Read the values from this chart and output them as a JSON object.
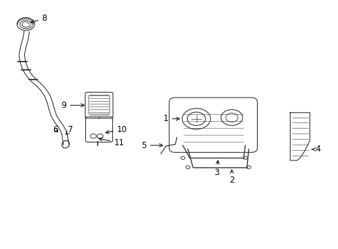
{
  "background_color": "#ffffff",
  "line_color": "#333333",
  "fig_width": 4.89,
  "fig_height": 3.6,
  "dpi": 100,
  "label_fontsize": 8.5,
  "label_color": "#000000"
}
